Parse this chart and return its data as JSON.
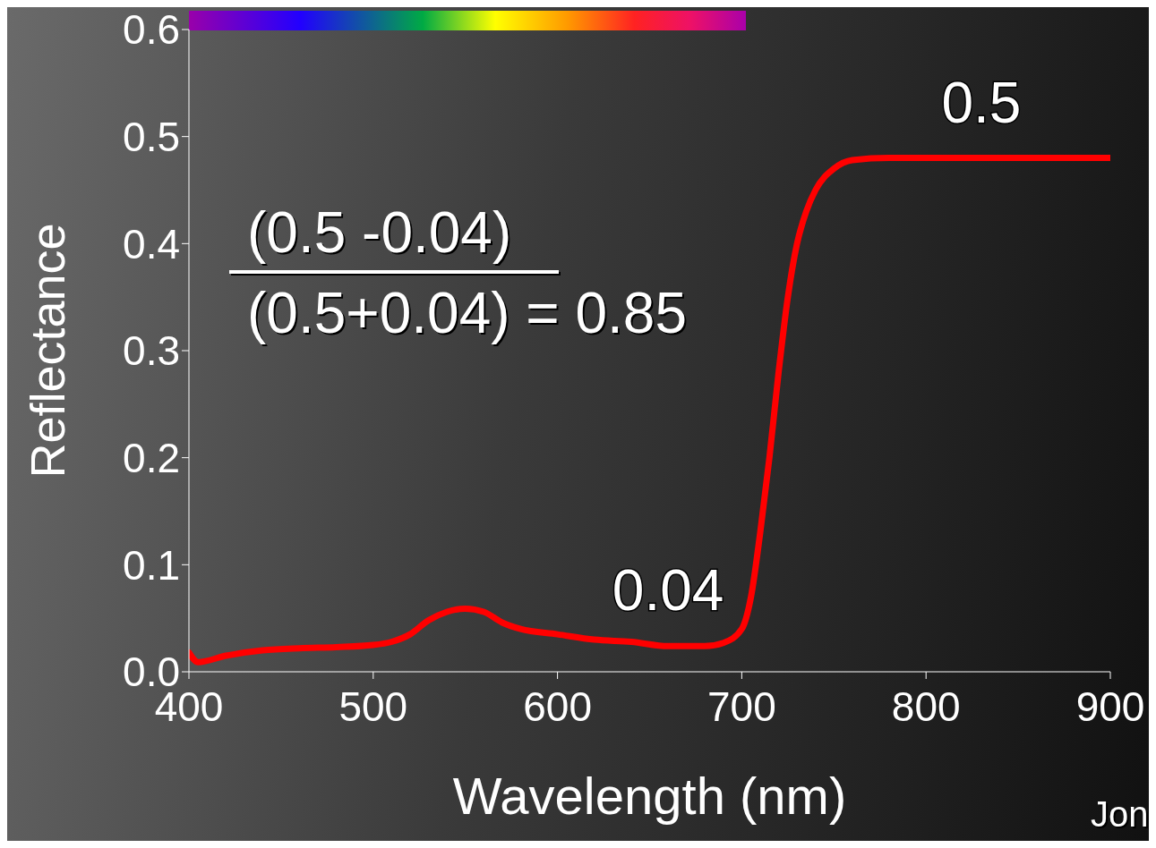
{
  "chart_data": {
    "type": "line",
    "xlabel": "Wavelength (nm)",
    "ylabel": "Reflectance",
    "series": [
      {
        "color": "#ff0000",
        "x": [
          400,
          405,
          420,
          440,
          460,
          480,
          500,
          510,
          520,
          530,
          540,
          550,
          560,
          570,
          580,
          600,
          620,
          640,
          660,
          680,
          690,
          700,
          705,
          710,
          715,
          720,
          725,
          730,
          735,
          740,
          750,
          760,
          780,
          900
        ],
        "values": [
          0.018,
          0.009,
          0.015,
          0.02,
          0.022,
          0.023,
          0.025,
          0.028,
          0.035,
          0.048,
          0.056,
          0.059,
          0.056,
          0.046,
          0.04,
          0.035,
          0.03,
          0.028,
          0.024,
          0.024,
          0.027,
          0.04,
          0.07,
          0.13,
          0.2,
          0.28,
          0.35,
          0.4,
          0.43,
          0.45,
          0.47,
          0.478,
          0.48,
          0.48
        ]
      }
    ],
    "xlim": [
      400,
      900
    ],
    "xticks": [
      400,
      500,
      600,
      700,
      800,
      900
    ],
    "ylim": [
      0,
      0.6
    ],
    "yticks": [
      {
        "value": 0,
        "label": "0.0"
      },
      {
        "value": 0.1,
        "label": "0.1"
      },
      {
        "value": 0.2,
        "label": "0.2"
      },
      {
        "value": 0.3,
        "label": "0.3"
      },
      {
        "value": 0.4,
        "label": "0.4"
      },
      {
        "value": 0.5,
        "label": "0.5"
      },
      {
        "value": 0.6,
        "label": "0.6"
      }
    ],
    "marker": "none",
    "line_style": "solid",
    "annotations": [
      {
        "text": "0.04",
        "x": 660,
        "y": 0.024
      },
      {
        "text": "0.5",
        "x": 830,
        "y": 0.48
      },
      "(0.5 -0.04)",
      "(0.5+0.04) = 0.85",
      "Jon"
    ]
  }
}
